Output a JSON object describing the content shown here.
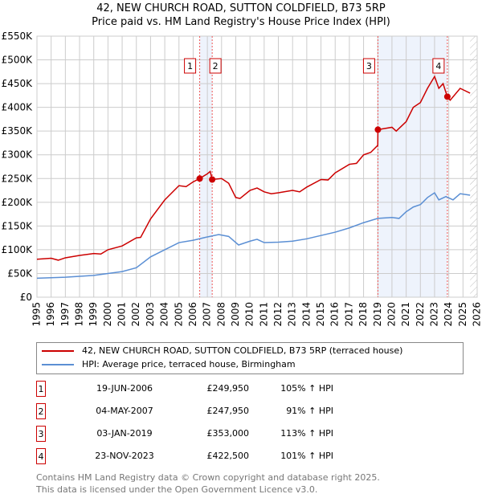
{
  "chart_data": {
    "type": "line",
    "title": "42, NEW CHURCH ROAD, SUTTON COLDFIELD, B73 5RP",
    "subtitle": "Price paid vs. HM Land Registry's House Price Index (HPI)",
    "xlim": [
      1995,
      2026
    ],
    "ylim": [
      0,
      550000
    ],
    "y_ticks": [
      "£0",
      "£50K",
      "£100K",
      "£150K",
      "£200K",
      "£250K",
      "£300K",
      "£350K",
      "£400K",
      "£450K",
      "£500K",
      "£550K"
    ],
    "x_ticks": [
      "1995",
      "1996",
      "1997",
      "1998",
      "1999",
      "2000",
      "2001",
      "2002",
      "2003",
      "2004",
      "2005",
      "2006",
      "2007",
      "2008",
      "2009",
      "2010",
      "2011",
      "2012",
      "2013",
      "2014",
      "2015",
      "2016",
      "2017",
      "2018",
      "2019",
      "2020",
      "2021",
      "2022",
      "2023",
      "2024",
      "2025",
      "2026"
    ],
    "grid": true,
    "series": [
      {
        "name": "42, NEW CHURCH ROAD, SUTTON COLDFIELD, B73 5RP (terraced house)",
        "color": "#cc0000",
        "x": [
          1995,
          1996,
          1996.5,
          1997,
          1998,
          1999,
          1999.5,
          2000,
          2001,
          2002,
          2002.3,
          2003,
          2004,
          2005,
          2005.5,
          2006,
          2006.46,
          2007,
          2007.2,
          2007.34,
          2008,
          2008.5,
          2009,
          2009.3,
          2010,
          2010.5,
          2011,
          2011.5,
          2012,
          2013,
          2013.5,
          2014,
          2015,
          2015.5,
          2016,
          2017,
          2017.5,
          2018,
          2018.5,
          2019,
          2019.01,
          2020,
          2020.3,
          2021,
          2021.5,
          2022,
          2022.5,
          2023,
          2023.3,
          2023.6,
          2023.9,
          2024.1,
          2024.8,
          2025.5
        ],
        "y": [
          80,
          82,
          78,
          83,
          88,
          92,
          91,
          100,
          108,
          125,
          126,
          165,
          205,
          235,
          233,
          243,
          250,
          260,
          265,
          248,
          250,
          240,
          210,
          208,
          225,
          230,
          222,
          218,
          220,
          225,
          222,
          232,
          248,
          247,
          262,
          280,
          282,
          300,
          305,
          320,
          353,
          358,
          350,
          370,
          400,
          410,
          440,
          465,
          440,
          450,
          422,
          415,
          440,
          430
        ]
      },
      {
        "name": "HPI: Average price, terraced house, Birmingham",
        "color": "#5b8fd4",
        "x": [
          1995,
          1997,
          1999,
          2000,
          2001,
          2002,
          2003,
          2004,
          2005,
          2006,
          2007,
          2007.8,
          2008.5,
          2009.2,
          2010,
          2010.5,
          2011,
          2012,
          2013,
          2014,
          2015,
          2016,
          2017,
          2018,
          2019,
          2020,
          2020.5,
          2021,
          2021.5,
          2022,
          2022.5,
          2023,
          2023.3,
          2023.8,
          2024.3,
          2024.8,
          2025.5
        ],
        "y": [
          40,
          42,
          46,
          50,
          54,
          62,
          85,
          100,
          115,
          120,
          127,
          132,
          128,
          110,
          118,
          122,
          115,
          116,
          118,
          123,
          130,
          137,
          146,
          157,
          166,
          168,
          166,
          180,
          190,
          195,
          210,
          220,
          205,
          212,
          205,
          218,
          215
        ]
      }
    ],
    "y_unit": "thousands GBP",
    "sales": [
      {
        "n": "1",
        "x": 2006.46,
        "y": 249.95,
        "date": "19-JUN-2006",
        "price": "£249,950",
        "hpi": "105% ↑ HPI"
      },
      {
        "n": "2",
        "x": 2007.34,
        "y": 247.95,
        "date": "04-MAY-2007",
        "price": "£247,950",
        "hpi": "91% ↑ HPI"
      },
      {
        "n": "3",
        "x": 2019.01,
        "y": 353,
        "date": "03-JAN-2019",
        "price": "£353,000",
        "hpi": "113% ↑ HPI"
      },
      {
        "n": "4",
        "x": 2023.9,
        "y": 422.5,
        "date": "23-NOV-2023",
        "price": "£422,500",
        "hpi": "101% ↑ HPI"
      }
    ]
  },
  "footer": [
    "Contains HM Land Registry data © Crown copyright and database right 2025.",
    "This data is licensed under the Open Government Licence v3.0."
  ]
}
